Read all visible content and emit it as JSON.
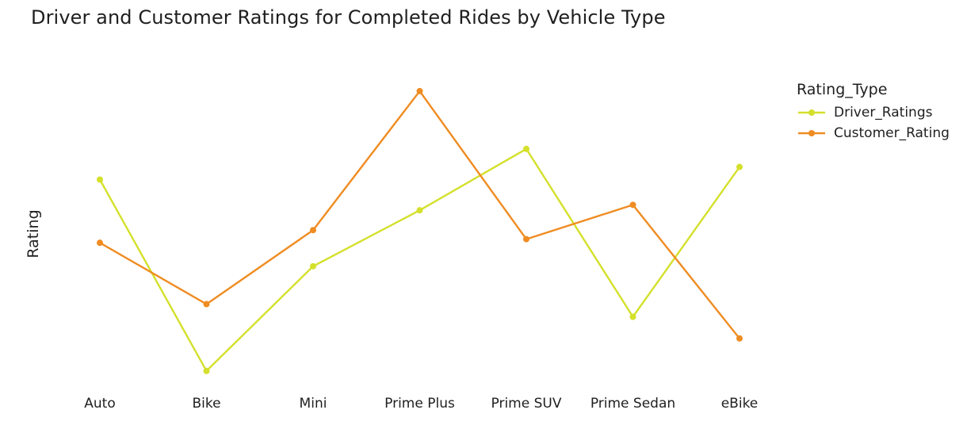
{
  "title": "Driver and Customer Ratings for Completed Rides by Vehicle Type",
  "chart_data": {
    "type": "line",
    "title": "Driver and Customer Ratings for Completed Rides by Vehicle Type",
    "xlabel": "",
    "ylabel": "Rating",
    "categories": [
      "Auto",
      "Bike",
      "Mini",
      "Prime Plus",
      "Prime SUV",
      "Prime Sedan",
      "eBike"
    ],
    "legend_title": "Rating_Type",
    "legend_position": "top-right",
    "grid": false,
    "ylim": [
      3.992,
      4.009
    ],
    "series": [
      {
        "name": "Driver_Ratings",
        "color": "#d4e02b",
        "values": [
          4.0034,
          3.9928,
          3.9986,
          4.0017,
          4.0051,
          3.9958,
          4.0041
        ]
      },
      {
        "name": "Customer_Rating",
        "color": "#ef8c22",
        "values": [
          3.9999,
          3.9965,
          4.0006,
          4.0083,
          4.0001,
          4.002,
          3.9946
        ]
      }
    ]
  }
}
